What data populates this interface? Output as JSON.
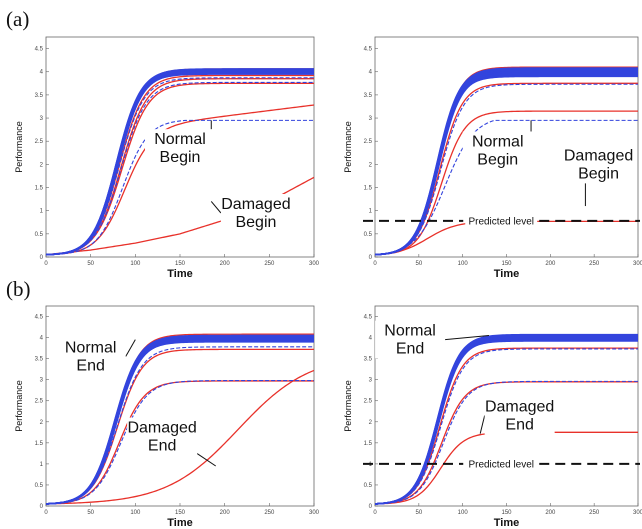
{
  "figure": {
    "row_labels": [
      "(a)",
      "(b)"
    ]
  },
  "chart_data": [
    {
      "panel": "(a) left",
      "type": "line",
      "xlabel": "Time",
      "ylabel": "Performance",
      "xlim": [
        0,
        300
      ],
      "ylim": [
        0,
        4.75
      ],
      "xticks": [
        0,
        50,
        100,
        150,
        200,
        250,
        300
      ],
      "yticks": [
        0,
        0.5,
        1,
        1.5,
        2,
        2.5,
        3,
        3.5,
        4,
        4.5
      ],
      "series": [
        {
          "color": "#e8312a",
          "style": "solid",
          "kind": "logistic",
          "plateau": 4.06,
          "mid": 80,
          "rate": 0.075
        },
        {
          "color": "#e8312a",
          "style": "solid",
          "kind": "logistic",
          "plateau": 3.92,
          "mid": 82,
          "rate": 0.072
        },
        {
          "color": "#e8312a",
          "style": "solid",
          "kind": "logistic",
          "plateau": 3.85,
          "mid": 84,
          "rate": 0.07
        },
        {
          "color": "#e8312a",
          "style": "solid",
          "kind": "logistic",
          "plateau": 3.75,
          "mid": 85,
          "rate": 0.068
        },
        {
          "color": "#e8312a",
          "style": "solid",
          "kind": "logistic_linear",
          "plateau": 2.85,
          "mid": 88,
          "rate": 0.065,
          "slope": 0.0024,
          "from": 120
        },
        {
          "color": "#e8312a",
          "style": "solid",
          "kind": "exponential",
          "points": [
            [
              0,
              0.05
            ],
            [
              50,
              0.15
            ],
            [
              100,
              0.3
            ],
            [
              150,
              0.5
            ],
            [
              200,
              0.8
            ],
            [
              250,
              1.2
            ],
            [
              300,
              1.72
            ]
          ]
        },
        {
          "color": "#3344dd",
          "style": "solid",
          "kind": "band",
          "plateau_lo": 3.95,
          "plateau_hi": 4.06,
          "mid": 80,
          "rate": 0.075,
          "lines": 14
        },
        {
          "color": "#3344dd",
          "style": "dashed",
          "kind": "logistic",
          "plateau": 3.87,
          "mid": 82,
          "rate": 0.072
        },
        {
          "color": "#3344dd",
          "style": "dashed",
          "kind": "logistic",
          "plateau": 3.77,
          "mid": 84,
          "rate": 0.07
        },
        {
          "color": "#3344dd",
          "style": "dashed",
          "kind": "logistic_cap",
          "plateau": 2.97,
          "mid": 86,
          "rate": 0.07,
          "cap": 2.95,
          "cap_from": 185
        }
      ],
      "annotations": [
        {
          "text_lines": [
            "Normal",
            "Begin"
          ],
          "at": [
            150,
            2.35
          ],
          "arrow_to": [
            185,
            2.95
          ]
        },
        {
          "text_lines": [
            "Damaged",
            "Begin"
          ],
          "at": [
            235,
            0.95
          ],
          "arrow_to": [
            185,
            1.2
          ]
        }
      ]
    },
    {
      "panel": "(a) right",
      "type": "line",
      "xlabel": "Time",
      "ylabel": "Performance",
      "xlim": [
        0,
        300
      ],
      "ylim": [
        0,
        4.75
      ],
      "xticks": [
        0,
        50,
        100,
        150,
        200,
        250,
        300
      ],
      "yticks": [
        0,
        0.5,
        1,
        1.5,
        2,
        2.5,
        3,
        3.5,
        4,
        4.5
      ],
      "predicted_level": {
        "label": "Predicted level",
        "y": 0.78
      },
      "series": [
        {
          "color": "#e8312a",
          "style": "solid",
          "kind": "logistic",
          "plateau": 4.1,
          "mid": 72,
          "rate": 0.08
        },
        {
          "color": "#e8312a",
          "style": "solid",
          "kind": "logistic",
          "plateau": 3.75,
          "mid": 74,
          "rate": 0.078
        },
        {
          "color": "#e8312a",
          "style": "solid",
          "kind": "logistic",
          "plateau": 3.15,
          "mid": 76,
          "rate": 0.075
        },
        {
          "color": "#e8312a",
          "style": "solid",
          "kind": "logistic",
          "plateau": 0.77,
          "mid": 60,
          "rate": 0.06
        },
        {
          "color": "#3344dd",
          "style": "solid",
          "kind": "band",
          "plateau_lo": 3.9,
          "plateau_hi": 4.08,
          "mid": 72,
          "rate": 0.08,
          "lines": 14
        },
        {
          "color": "#3344dd",
          "style": "dashed",
          "kind": "logistic",
          "plateau": 3.73,
          "mid": 75,
          "rate": 0.075
        },
        {
          "color": "#3344dd",
          "style": "dashed",
          "kind": "logistic_cap",
          "plateau": 3.05,
          "mid": 80,
          "rate": 0.06,
          "cap": 2.95,
          "cap_from": 180
        }
      ],
      "annotations": [
        {
          "text_lines": [
            "Normal",
            "Begin"
          ],
          "at": [
            140,
            2.3
          ],
          "arrow_to": [
            178,
            2.95
          ]
        },
        {
          "text_lines": [
            "Damaged",
            "Begin"
          ],
          "at": [
            255,
            2.0
          ],
          "arrow_to": [
            240,
            1.1
          ]
        }
      ]
    },
    {
      "panel": "(b) left",
      "type": "line",
      "xlabel": "Time",
      "ylabel": "Performance",
      "xlim": [
        0,
        300
      ],
      "ylim": [
        0,
        4.75
      ],
      "xticks": [
        0,
        50,
        100,
        150,
        200,
        250,
        300
      ],
      "yticks": [
        0,
        0.5,
        1,
        1.5,
        2,
        2.5,
        3,
        3.5,
        4,
        4.5
      ],
      "series": [
        {
          "color": "#e8312a",
          "style": "solid",
          "kind": "logistic",
          "plateau": 4.08,
          "mid": 78,
          "rate": 0.075
        },
        {
          "color": "#e8312a",
          "style": "solid",
          "kind": "logistic",
          "plateau": 3.72,
          "mid": 80,
          "rate": 0.072
        },
        {
          "color": "#e8312a",
          "style": "solid",
          "kind": "logistic",
          "plateau": 2.97,
          "mid": 82,
          "rate": 0.07
        },
        {
          "color": "#e8312a",
          "style": "solid",
          "kind": "logistic",
          "plateau": 3.6,
          "mid": 215,
          "rate": 0.025
        },
        {
          "color": "#3344dd",
          "style": "solid",
          "kind": "band",
          "plateau_lo": 3.9,
          "plateau_hi": 4.05,
          "mid": 78,
          "rate": 0.075,
          "lines": 14
        },
        {
          "color": "#3344dd",
          "style": "dashed",
          "kind": "logistic",
          "plateau": 3.78,
          "mid": 80,
          "rate": 0.072
        },
        {
          "color": "#3344dd",
          "style": "dashed",
          "kind": "logistic",
          "plateau": 2.98,
          "mid": 84,
          "rate": 0.068
        }
      ],
      "annotations": [
        {
          "text_lines": [
            "Normal",
            "End"
          ],
          "at": [
            50,
            3.55
          ],
          "arrow_to": [
            100,
            3.95
          ]
        },
        {
          "text_lines": [
            "Damaged",
            "End"
          ],
          "at": [
            130,
            1.65
          ],
          "arrow_to": [
            190,
            0.95
          ]
        }
      ]
    },
    {
      "panel": "(b) right",
      "type": "line",
      "xlabel": "Time",
      "ylabel": "Performance",
      "xlim": [
        0,
        300
      ],
      "ylim": [
        0,
        4.75
      ],
      "xticks": [
        0,
        50,
        100,
        150,
        200,
        250,
        300
      ],
      "yticks": [
        0,
        0.5,
        1,
        1.5,
        2,
        2.5,
        3,
        3.5,
        4,
        4.5
      ],
      "predicted_level": {
        "label": "Predicted level",
        "y": 1.0
      },
      "series": [
        {
          "color": "#e8312a",
          "style": "solid",
          "kind": "logistic",
          "plateau": 4.0,
          "mid": 72,
          "rate": 0.08
        },
        {
          "color": "#e8312a",
          "style": "solid",
          "kind": "logistic",
          "plateau": 3.75,
          "mid": 74,
          "rate": 0.078
        },
        {
          "color": "#e8312a",
          "style": "solid",
          "kind": "logistic",
          "plateau": 2.95,
          "mid": 76,
          "rate": 0.075
        },
        {
          "color": "#e8312a",
          "style": "solid",
          "kind": "logistic",
          "plateau": 1.75,
          "mid": 75,
          "rate": 0.075
        },
        {
          "color": "#3344dd",
          "style": "solid",
          "kind": "band",
          "plateau_lo": 3.92,
          "plateau_hi": 4.07,
          "mid": 72,
          "rate": 0.08,
          "lines": 14
        },
        {
          "color": "#3344dd",
          "style": "dashed",
          "kind": "logistic",
          "plateau": 3.73,
          "mid": 75,
          "rate": 0.076
        },
        {
          "color": "#3344dd",
          "style": "dashed",
          "kind": "logistic",
          "plateau": 2.96,
          "mid": 78,
          "rate": 0.073
        }
      ],
      "annotations": [
        {
          "text_lines": [
            "Normal",
            "End"
          ],
          "at": [
            40,
            3.95
          ],
          "arrow_to": [
            130,
            4.05
          ]
        },
        {
          "text_lines": [
            "Damaged",
            "End"
          ],
          "at": [
            165,
            2.15
          ],
          "arrow_to": [
            120,
            1.72
          ]
        }
      ]
    }
  ]
}
